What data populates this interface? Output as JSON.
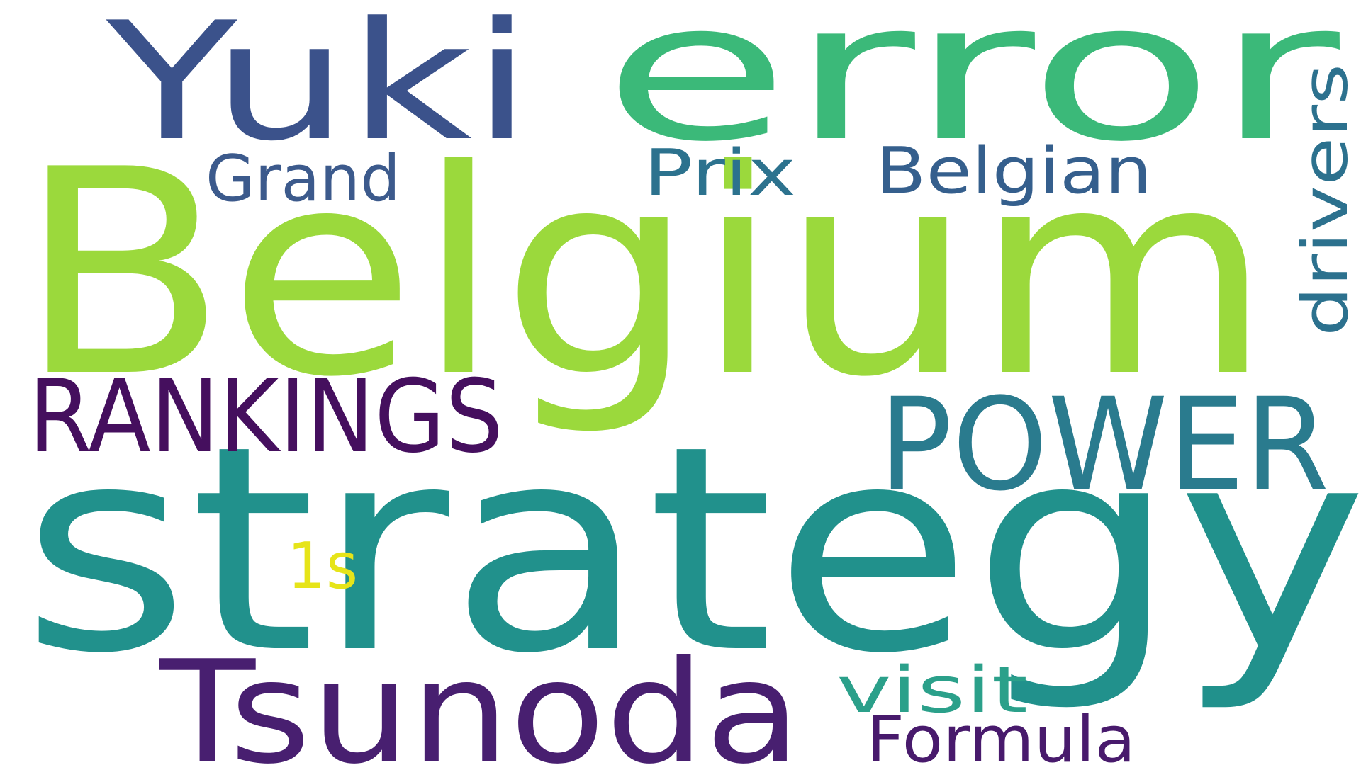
{
  "words": [
    {
      "text": "Belgium",
      "color": "#9bd93c"
    },
    {
      "text": "strategy",
      "color": "#21918c"
    },
    {
      "text": "error",
      "color": "#3bb979"
    },
    {
      "text": "Yuki",
      "color": "#3b528b"
    },
    {
      "text": "Tsunoda",
      "color": "#481f70"
    },
    {
      "text": "POWER",
      "color": "#2a7b8e"
    },
    {
      "text": "RANKINGS",
      "color": "#450f5e"
    },
    {
      "text": "Grand",
      "color": "#3c5a8c"
    },
    {
      "text": "Prix",
      "color": "#2c728e"
    },
    {
      "text": "Belgian",
      "color": "#355f8d"
    },
    {
      "text": "drivers",
      "color": "#2c718e"
    },
    {
      "text": "visit",
      "color": "#2ba08a"
    },
    {
      "text": "Formula",
      "color": "#481a6c"
    },
    {
      "text": "1s",
      "color": "#e6e419"
    }
  ]
}
